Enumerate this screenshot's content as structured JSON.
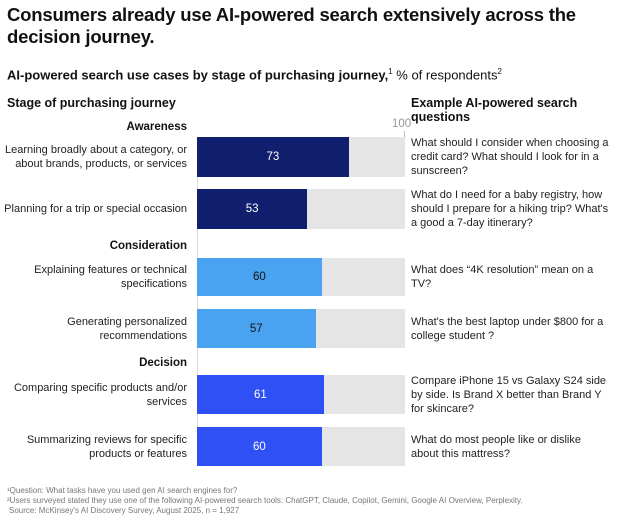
{
  "title": "Consumers already use AI-powered search extensively across the decision journey.",
  "subtitle": {
    "bold": "AI-powered search use cases by stage of purchasing journey,",
    "sup1": "1",
    "rest": " % of respondents",
    "sup2": "2"
  },
  "colors": {
    "awareness": "#101f6e",
    "consideration": "#4aa3f0",
    "decision": "#2e50f5",
    "track": "#e5e5e5"
  },
  "chart_data": {
    "type": "bar",
    "orientation": "horizontal",
    "xlim": [
      0,
      100
    ],
    "axis_max_label": "100",
    "left_header": "Stage of purchasing journey",
    "right_header": "Example AI-powered search questions",
    "groups": [
      {
        "stage": "Awareness",
        "rows": [
          {
            "label": "Learning broadly about a category, or about brands, products, or services",
            "value": 73,
            "value_label": "73",
            "question": "What should I consider when choosing a credit card? What should I look for in a sunscreen?"
          },
          {
            "label": "Planning for a trip or special occasion",
            "value": 53,
            "value_label": "53",
            "question": "What do I need for a baby registry, how should I prepare for a hiking trip? What's a good a 7-day itinerary?"
          }
        ]
      },
      {
        "stage": "Consideration",
        "rows": [
          {
            "label": "Explaining features or technical specifications",
            "value": 60,
            "value_label": "60",
            "question": "What does “4K resolution” mean on a TV?"
          },
          {
            "label": "Generating personalized recommendations",
            "value": 57,
            "value_label": "57",
            "question": "What's the best laptop under $800 for a college student ?"
          }
        ]
      },
      {
        "stage": "Decision",
        "rows": [
          {
            "label": "Comparing specific products and/or services",
            "value": 61,
            "value_label": "61",
            "question": "Compare iPhone 15 vs Galaxy S24 side by side. Is Brand X better than Brand Y for skincare?"
          },
          {
            "label": "Summarizing reviews for specific products or features",
            "value": 60,
            "value_label": "60",
            "question": "What do most people like or dislike about this mattress?"
          }
        ]
      }
    ]
  },
  "footnotes": [
    "¹Question: What tasks have you used gen AI search engines for?",
    "²Users surveyed stated they use one of the following AI-powered search tools: ChatGPT, Claude, Copilot, Gemini, Google AI Overview, Perplexity.",
    "Source: McKinsey's AI Discovery Survey, August 2025, n = 1,927"
  ]
}
